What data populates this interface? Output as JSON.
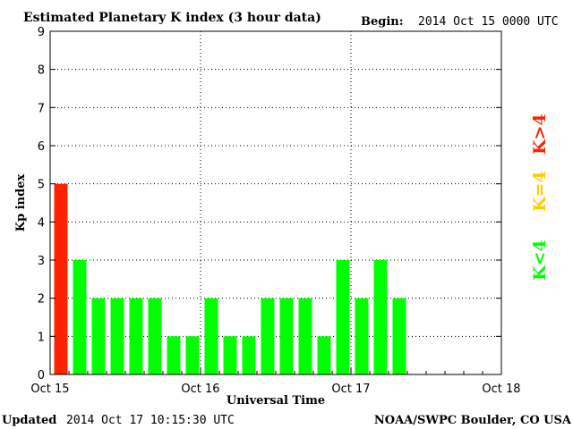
{
  "chart_data": {
    "type": "bar",
    "title": "Estimated Planetary K index (3 hour data)",
    "begin_label": "Begin:",
    "begin_value": "2014 Oct 15 0000 UTC",
    "xlabel": "Universal Time",
    "ylabel": "Kp index",
    "ylim": [
      0,
      9
    ],
    "yticks": [
      "0",
      "1",
      "2",
      "3",
      "4",
      "5",
      "6",
      "7",
      "8",
      "9"
    ],
    "xticks": [
      "Oct 15",
      "Oct 16",
      "Oct 17",
      "Oct 18"
    ],
    "grid": true,
    "bar_interval_hours": 3,
    "values": [
      5,
      3,
      2,
      2,
      2,
      2,
      1,
      1,
      2,
      1,
      1,
      2,
      2,
      2,
      1,
      3,
      2,
      3,
      2
    ],
    "colors": {
      "low": "#00ff00",
      "equal": "#ffcc00",
      "high": "#ff2200"
    },
    "legend": [
      "K<4",
      "K=4",
      "K>4"
    ]
  },
  "footer": {
    "updated_label": "Updated",
    "updated_value": "2014 Oct 17 10:15:30 UTC",
    "credit": "NOAA/SWPC Boulder, CO USA"
  }
}
